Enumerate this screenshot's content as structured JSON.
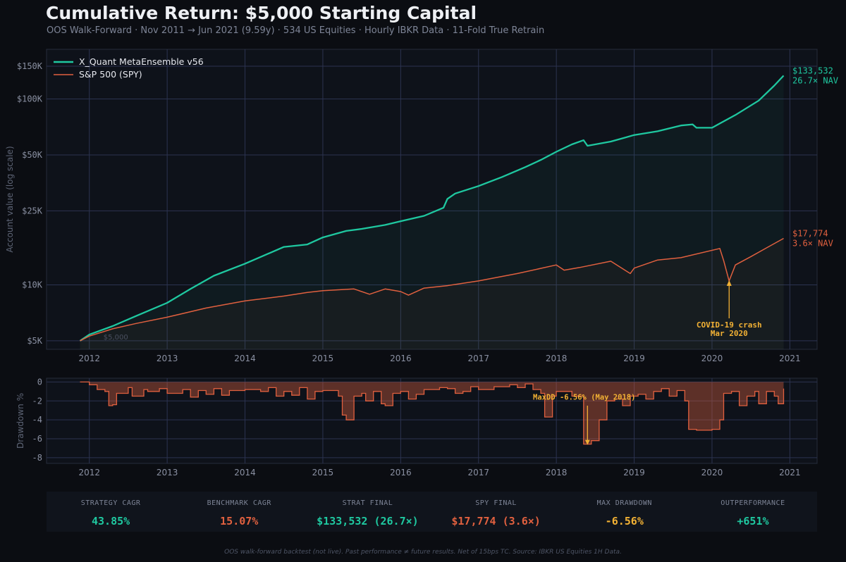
{
  "header": {
    "title": "Cumulative Return: $5,000 Starting Capital",
    "subtitle": "OOS Walk-Forward · Nov 2011 → Jun 2021 (9.59y) · 534 US Equities · Hourly IBKR Data · 11-Fold True Retrain"
  },
  "colors": {
    "strategy": "#1fc8a0",
    "benchmark": "#e0603f",
    "annotation": "#f2b134",
    "grid": "#2c3350",
    "axis_text": "#8a90a2"
  },
  "chart_data": [
    {
      "type": "line",
      "yscale": "log",
      "ylabel": "Account value (log scale)",
      "xlim": [
        2011.45,
        2021.35
      ],
      "ylim": [
        4500,
        185000
      ],
      "x_ticks": [
        "2012",
        "2013",
        "2014",
        "2015",
        "2016",
        "2017",
        "2018",
        "2019",
        "2020",
        "2021"
      ],
      "y_ticks": [
        {
          "value": 5000,
          "label": "$5K"
        },
        {
          "value": 10000,
          "label": "$10K"
        },
        {
          "value": 25000,
          "label": "$25K"
        },
        {
          "value": 50000,
          "label": "$50K"
        },
        {
          "value": 100000,
          "label": "$100K"
        },
        {
          "value": 150000,
          "label": "$150K"
        }
      ],
      "grid": true,
      "legend": "top-left",
      "series": [
        {
          "name": "X_Quant MetaEnsemble v56",
          "color": "#1fc8a0",
          "x": [
            2011.88,
            2012.0,
            2012.3,
            2012.6,
            2013.0,
            2013.3,
            2013.6,
            2014.0,
            2014.5,
            2014.8,
            2015.0,
            2015.3,
            2015.5,
            2015.8,
            2016.0,
            2016.3,
            2016.55,
            2016.6,
            2016.7,
            2017.0,
            2017.3,
            2017.6,
            2017.8,
            2018.0,
            2018.2,
            2018.35,
            2018.4,
            2018.7,
            2019.0,
            2019.3,
            2019.6,
            2019.75,
            2019.8,
            2020.0,
            2020.3,
            2020.6,
            2020.8,
            2020.92
          ],
          "y": [
            5000,
            5400,
            6000,
            6800,
            8000,
            9500,
            11200,
            13000,
            16000,
            16500,
            18000,
            19500,
            20000,
            21000,
            22000,
            23500,
            26000,
            29000,
            31000,
            34000,
            38000,
            43000,
            47000,
            52000,
            57000,
            60000,
            56000,
            59000,
            64000,
            67000,
            72000,
            73000,
            70000,
            70000,
            82000,
            98000,
            118000,
            133532
          ]
        },
        {
          "name": "S&P 500 (SPY)",
          "color": "#e0603f",
          "x": [
            2011.88,
            2012.0,
            2012.3,
            2012.6,
            2013.0,
            2013.5,
            2014.0,
            2014.5,
            2014.8,
            2015.0,
            2015.4,
            2015.6,
            2015.8,
            2016.0,
            2016.1,
            2016.3,
            2016.6,
            2017.0,
            2017.5,
            2018.0,
            2018.1,
            2018.3,
            2018.7,
            2018.95,
            2019.0,
            2019.3,
            2019.6,
            2020.1,
            2020.15,
            2020.22,
            2020.3,
            2020.5,
            2020.7,
            2020.92
          ],
          "y": [
            5000,
            5300,
            5800,
            6200,
            6700,
            7500,
            8200,
            8700,
            9100,
            9300,
            9500,
            8900,
            9500,
            9200,
            8800,
            9600,
            9900,
            10500,
            11500,
            12800,
            12000,
            12400,
            13400,
            11500,
            12300,
            13600,
            14000,
            15700,
            13500,
            10500,
            12800,
            14200,
            15800,
            17774
          ]
        }
      ],
      "end_labels": [
        {
          "value": "$133,532",
          "multiple": "26.7× NAV"
        },
        {
          "value": "$17,774",
          "multiple": "3.6× NAV"
        }
      ],
      "annotations": [
        {
          "text": "COVID-19 crash",
          "text2": "Mar 2020",
          "x": 2020.22,
          "y": 10500
        },
        {
          "text": "$5,000",
          "x": 2012.0,
          "y": 5000
        }
      ]
    },
    {
      "type": "area",
      "ylabel": "Drawdown %",
      "xlim": [
        2011.45,
        2021.35
      ],
      "ylim": [
        -8.6,
        0.4
      ],
      "x_ticks": [
        "2012",
        "2013",
        "2014",
        "2015",
        "2016",
        "2017",
        "2018",
        "2019",
        "2020",
        "2021"
      ],
      "y_ticks": [
        0,
        -2,
        -4,
        -6,
        -8
      ],
      "grid": true,
      "series": [
        {
          "name": "Drawdown",
          "color": "#e0603f",
          "x": [
            2011.88,
            2012.0,
            2012.1,
            2012.2,
            2012.25,
            2012.3,
            2012.35,
            2012.5,
            2012.55,
            2012.7,
            2012.75,
            2012.9,
            2013.0,
            2013.2,
            2013.3,
            2013.4,
            2013.5,
            2013.6,
            2013.7,
            2013.8,
            2014.0,
            2014.2,
            2014.3,
            2014.4,
            2014.5,
            2014.6,
            2014.7,
            2014.8,
            2014.9,
            2015.0,
            2015.2,
            2015.25,
            2015.3,
            2015.4,
            2015.5,
            2015.55,
            2015.65,
            2015.75,
            2015.8,
            2015.9,
            2016.0,
            2016.1,
            2016.2,
            2016.3,
            2016.5,
            2016.6,
            2016.7,
            2016.8,
            2016.9,
            2017.0,
            2017.2,
            2017.4,
            2017.5,
            2017.6,
            2017.7,
            2017.8,
            2017.85,
            2017.95,
            2018.0,
            2018.2,
            2018.35,
            2018.45,
            2018.55,
            2018.65,
            2018.75,
            2018.85,
            2018.95,
            2019.05,
            2019.15,
            2019.25,
            2019.35,
            2019.45,
            2019.55,
            2019.65,
            2019.7,
            2019.8,
            2020.0,
            2020.1,
            2020.15,
            2020.25,
            2020.35,
            2020.45,
            2020.55,
            2020.6,
            2020.7,
            2020.8,
            2020.85,
            2020.92
          ],
          "y": [
            0,
            -0.3,
            -0.8,
            -1.0,
            -2.5,
            -2.4,
            -1.2,
            -0.6,
            -1.5,
            -0.8,
            -1.0,
            -0.7,
            -1.2,
            -0.8,
            -1.6,
            -0.9,
            -1.3,
            -0.7,
            -1.4,
            -0.9,
            -0.8,
            -1.0,
            -0.6,
            -1.5,
            -1.0,
            -1.4,
            -0.6,
            -1.8,
            -1.0,
            -0.9,
            -1.5,
            -3.5,
            -4.0,
            -1.5,
            -1.2,
            -2.0,
            -1.0,
            -2.3,
            -2.5,
            -1.2,
            -1.0,
            -1.8,
            -1.3,
            -0.8,
            -0.6,
            -0.7,
            -1.2,
            -1.0,
            -0.5,
            -0.8,
            -0.5,
            -0.3,
            -0.6,
            -0.2,
            -0.8,
            -1.2,
            -3.7,
            -1.5,
            -1.0,
            -1.5,
            -6.56,
            -6.2,
            -4.0,
            -2.0,
            -1.8,
            -2.5,
            -1.5,
            -1.3,
            -1.8,
            -1.0,
            -0.7,
            -1.5,
            -0.9,
            -2.0,
            -5.0,
            -5.1,
            -5.0,
            -4.0,
            -1.2,
            -1.0,
            -2.5,
            -1.5,
            -1.0,
            -2.3,
            -1.0,
            -1.5,
            -2.3,
            -0.7
          ]
        }
      ],
      "annotations": [
        {
          "text": "MaxDD -6.56%  (May 2018)",
          "x": 2018.4,
          "y": -6.56
        }
      ]
    }
  ],
  "stats": [
    {
      "label": "STRATEGY CAGR",
      "value": "43.85%",
      "color": "#1fc8a0"
    },
    {
      "label": "BENCHMARK CAGR",
      "value": "15.07%",
      "color": "#e0603f"
    },
    {
      "label": "STRAT FINAL",
      "value": "$133,532 (26.7×)",
      "color": "#1fc8a0"
    },
    {
      "label": "SPY FINAL",
      "value": "$17,774 (3.6×)",
      "color": "#e0603f"
    },
    {
      "label": "MAX DRAWDOWN",
      "value": "-6.56%",
      "color": "#f2b134"
    },
    {
      "label": "OUTPERFORMANCE",
      "value": "+651%",
      "color": "#1fc8a0"
    }
  ],
  "footer": "OOS walk-forward backtest (not live). Past performance ≠ future results. Net of 15bps TC. Source: IBKR US Equities 1H Data."
}
